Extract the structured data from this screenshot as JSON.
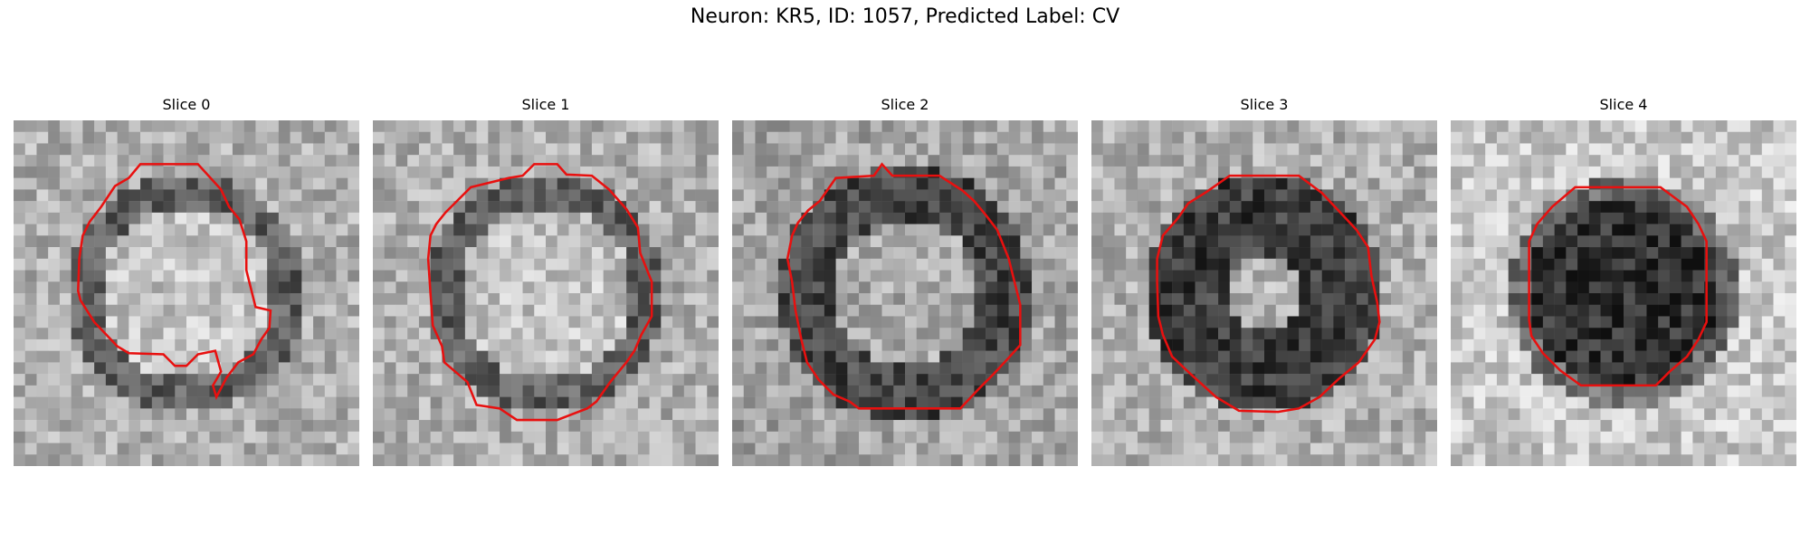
{
  "figure": {
    "title": "Neuron: KR5, ID: 1057, Predicted Label: CV"
  },
  "panels": [
    {
      "title": "Slice 0",
      "image": "grayscale-em-patch-slice-0",
      "contour_color": "#e8100f"
    },
    {
      "title": "Slice 1",
      "image": "grayscale-em-patch-slice-1",
      "contour_color": "#e8100f"
    },
    {
      "title": "Slice 2",
      "image": "grayscale-em-patch-slice-2",
      "contour_color": "#e8100f"
    },
    {
      "title": "Slice 3",
      "image": "grayscale-em-patch-slice-3",
      "contour_color": "#e8100f"
    },
    {
      "title": "Slice 4",
      "image": "grayscale-em-patch-slice-4",
      "contour_color": "#e8100f"
    }
  ]
}
